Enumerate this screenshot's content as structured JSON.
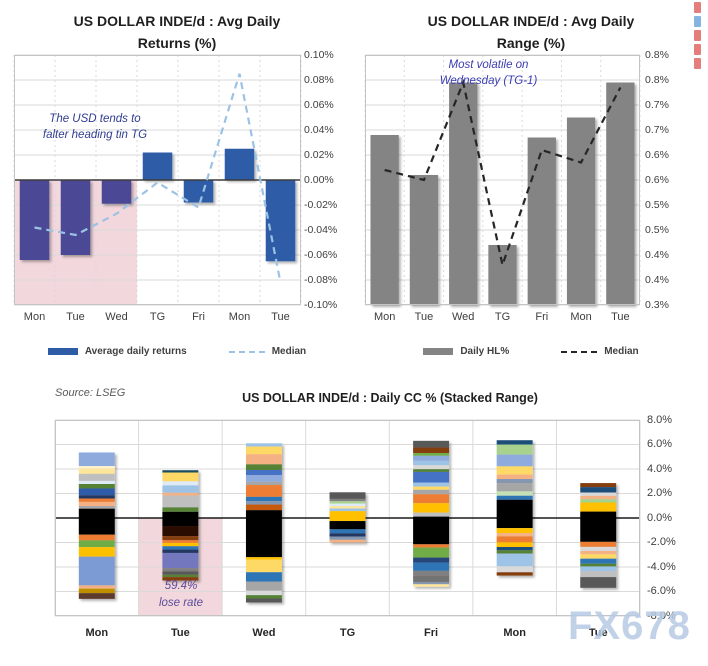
{
  "page": {
    "background": "#ffffff",
    "watermark": "FX678"
  },
  "edge_marks": {
    "colors": [
      "#e06666",
      "#6fa8dc",
      "#e06666",
      "#e06666",
      "#e06666"
    ]
  },
  "chart_data": [
    {
      "id": "avg-daily-returns",
      "type": "bar",
      "title_lines": [
        "US DOLLAR INDE/d : Avg Daily",
        "Returns (%)"
      ],
      "annotation_lines": [
        "The USD tends to",
        "falter heading tin TG"
      ],
      "annotation_color": "#2F3D8F",
      "categories": [
        "Mon",
        "Tue",
        "Wed",
        "TG",
        "Fri",
        "Mon",
        "Tue"
      ],
      "ylim": [
        -0.1,
        0.1
      ],
      "ytick_values": [
        0.1,
        0.08,
        0.06,
        0.04,
        0.02,
        0.0,
        -0.02,
        -0.04,
        -0.06,
        -0.08,
        -0.1
      ],
      "ytick_labels": [
        "0.10%",
        "0.08%",
        "0.06%",
        "0.04%",
        "0.02%",
        "0.00%",
        "-0.02%",
        "-0.04%",
        "-0.06%",
        "-0.08%",
        "-0.10%"
      ],
      "series": [
        {
          "name": "Average daily returns",
          "type": "bar",
          "legend_color": "#2D5BA6",
          "colors": [
            "#4B4A96",
            "#4B4A96",
            "#4B4A96",
            "#2D5BA6",
            "#2D5BA6",
            "#2D5BA6",
            "#2D5BA6"
          ],
          "values": [
            -0.064,
            -0.06,
            -0.019,
            0.022,
            -0.018,
            0.025,
            -0.065
          ]
        },
        {
          "name": "Median",
          "type": "line",
          "color": "#9CC2E5",
          "dashed": true,
          "values": [
            -0.038,
            -0.044,
            -0.027,
            -0.002,
            -0.022,
            0.085,
            -0.082
          ]
        }
      ],
      "highlight": {
        "start_category": 0,
        "end_category": 2,
        "from": 0,
        "to": -0.1,
        "color": "#F2D7DC"
      },
      "legend_position": "bottom",
      "grid": true
    },
    {
      "id": "avg-daily-range",
      "type": "bar",
      "title_lines": [
        "US DOLLAR INDE/d : Avg Daily",
        "Range (%)"
      ],
      "annotation_lines": [
        "Most volatile on",
        "Wednesday (TG-1)"
      ],
      "annotation_color": "#3C3CB4",
      "categories": [
        "Mon",
        "Tue",
        "Wed",
        "TG",
        "Fri",
        "Mon",
        "Tue"
      ],
      "ylim": [
        0.3,
        0.8
      ],
      "ytick_values": [
        0.8,
        0.75,
        0.7,
        0.65,
        0.6,
        0.55,
        0.5,
        0.45,
        0.4,
        0.35,
        0.3
      ],
      "ytick_labels": [
        "0.8%",
        "0.8%",
        "0.7%",
        "0.7%",
        "0.6%",
        "0.6%",
        "0.5%",
        "0.5%",
        "0.4%",
        "0.4%",
        "0.3%"
      ],
      "series": [
        {
          "name": "Daily HL%",
          "type": "bar",
          "legend_color": "#848484",
          "color": "#848484",
          "values": [
            0.64,
            0.56,
            0.745,
            0.42,
            0.635,
            0.675,
            0.745
          ]
        },
        {
          "name": "Median",
          "type": "line",
          "color": "#262626",
          "dashed": true,
          "values": [
            0.57,
            0.55,
            0.745,
            0.38,
            0.61,
            0.585,
            0.735
          ]
        }
      ],
      "legend_position": "bottom",
      "grid": true
    },
    {
      "id": "daily-cc-stacked",
      "type": "stacked-bar",
      "source_note": "Source: LSEG",
      "title": "US DOLLAR INDE/d : Daily CC % (Stacked Range)",
      "categories": [
        "Mon",
        "Tue",
        "Wed",
        "TG",
        "Fri",
        "Mon",
        "Tue"
      ],
      "ylim": [
        -8,
        8
      ],
      "ytick_values": [
        8,
        6,
        4,
        2,
        0,
        -2,
        -4,
        -6,
        -8
      ],
      "ytick_labels": [
        "8.0%",
        "6.0%",
        "4.0%",
        "2.0%",
        "0.0%",
        "-2.0%",
        "-4.0%",
        "-6.0%",
        "-8.0%"
      ],
      "highlight": {
        "category_index": 1,
        "from": 0,
        "to": -8,
        "color": "#F2D7DC",
        "label_lines": [
          "59.4%",
          "lose rate"
        ],
        "label_color": "#5C4B9B"
      },
      "grid": true,
      "bars": [
        {
          "category": "Mon",
          "top": 5.35,
          "bottom": -6.6,
          "segments": [
            {
              "c": "#8FAADC",
              "h": 1.1
            },
            {
              "c": "#FFF2CC",
              "h": 0.22
            },
            {
              "c": "#FFE699",
              "h": 0.41
            },
            {
              "c": "#BFBFBF",
              "h": 0.57
            },
            {
              "c": "#DEEBF7",
              "h": 0.25
            },
            {
              "c": "#548235",
              "h": 0.36
            },
            {
              "c": "#2E5BA8",
              "h": 0.55
            },
            {
              "c": "#203864",
              "h": 0.27
            },
            {
              "c": "#ED7D31",
              "h": 0.27
            },
            {
              "c": "#F4B183",
              "h": 0.33
            },
            {
              "c": "#A6A6A6",
              "h": 0.22
            },
            {
              "c": "#000000",
              "h": 2.1
            },
            {
              "c": "#ED7D31",
              "h": 0.46
            },
            {
              "c": "#70AD47",
              "h": 0.55
            },
            {
              "c": "#FFC000",
              "h": 0.77
            },
            {
              "c": "#7B9BD5",
              "h": 2.32
            },
            {
              "c": "#F4B183",
              "h": 0.27
            },
            {
              "c": "#BF8F00",
              "h": 0.36
            },
            {
              "c": "#5B3A29",
              "h": 0.46
            }
          ]
        },
        {
          "category": "Tue",
          "top": 3.9,
          "bottom": -5.1,
          "segments": [
            {
              "c": "#1F4E5F",
              "h": 0.19
            },
            {
              "c": "#FFD966",
              "h": 0.71
            },
            {
              "c": "#DEEBF7",
              "h": 0.33
            },
            {
              "c": "#9DC3E6",
              "h": 0.6
            },
            {
              "c": "#F4B183",
              "h": 0.22
            },
            {
              "c": "#BFBFBF",
              "h": 0.96
            },
            {
              "c": "#548235",
              "h": 0.36
            },
            {
              "c": "#000000",
              "h": 1.15
            },
            {
              "c": "#2B0B02",
              "h": 0.82
            },
            {
              "c": "#843C0C",
              "h": 0.33
            },
            {
              "c": "#ED7D31",
              "h": 0.22
            },
            {
              "c": "#FFC000",
              "h": 0.27
            },
            {
              "c": "#2E75B6",
              "h": 0.27
            },
            {
              "c": "#203864",
              "h": 0.27
            },
            {
              "c": "#7277BE",
              "h": 1.23
            },
            {
              "c": "#808080",
              "h": 0.27
            },
            {
              "c": "#595959",
              "h": 0.27
            },
            {
              "c": "#548235",
              "h": 0.19
            },
            {
              "c": "#843C0C",
              "h": 0.27
            }
          ]
        },
        {
          "category": "Wed",
          "top": 6.1,
          "bottom": -6.9,
          "segments": [
            {
              "c": "#9DC3E6",
              "h": 0.27
            },
            {
              "c": "#FFD966",
              "h": 0.63
            },
            {
              "c": "#F4B183",
              "h": 0.82
            },
            {
              "c": "#548235",
              "h": 0.46
            },
            {
              "c": "#4472C4",
              "h": 0.41
            },
            {
              "c": "#8FAADC",
              "h": 0.55
            },
            {
              "c": "#A6A6A6",
              "h": 0.27
            },
            {
              "c": "#ED7D31",
              "h": 0.96
            },
            {
              "c": "#2E75B6",
              "h": 0.36
            },
            {
              "c": "#8496B0",
              "h": 0.27
            },
            {
              "c": "#C55A11",
              "h": 0.46
            },
            {
              "c": "#000000",
              "h": 3.83
            },
            {
              "c": "#FFC000",
              "h": 0.19
            },
            {
              "c": "#FFD966",
              "h": 1.04
            },
            {
              "c": "#2E75B6",
              "h": 0.77
            },
            {
              "c": "#A6A6A6",
              "h": 0.74
            },
            {
              "c": "#D9D9D9",
              "h": 0.36
            },
            {
              "c": "#548235",
              "h": 0.27
            },
            {
              "c": "#595959",
              "h": 0.33
            }
          ]
        },
        {
          "category": "TG",
          "top": 2.1,
          "bottom": -2.0,
          "segments": [
            {
              "c": "#595959",
              "h": 0.55
            },
            {
              "c": "#808080",
              "h": 0.19
            },
            {
              "c": "#A9D18E",
              "h": 0.19
            },
            {
              "c": "#DEEBF7",
              "h": 0.22
            },
            {
              "c": "#FFE699",
              "h": 0.19
            },
            {
              "c": "#9DC3E6",
              "h": 0.22
            },
            {
              "c": "#FFC000",
              "h": 0.82
            },
            {
              "c": "#000000",
              "h": 0.68
            },
            {
              "c": "#2E75B6",
              "h": 0.33
            },
            {
              "c": "#203864",
              "h": 0.27
            },
            {
              "c": "#8496B0",
              "h": 0.27
            },
            {
              "c": "#F4B183",
              "h": 0.22
            }
          ]
        },
        {
          "category": "Fri",
          "top": 6.3,
          "bottom": -5.6,
          "segments": [
            {
              "c": "#595959",
              "h": 0.55
            },
            {
              "c": "#843C0C",
              "h": 0.46
            },
            {
              "c": "#70AD47",
              "h": 0.22
            },
            {
              "c": "#8FAADC",
              "h": 0.41
            },
            {
              "c": "#9DC3E6",
              "h": 0.36
            },
            {
              "c": "#D9D9D9",
              "h": 0.33
            },
            {
              "c": "#548235",
              "h": 0.22
            },
            {
              "c": "#4472C4",
              "h": 0.87
            },
            {
              "c": "#9DC3E6",
              "h": 0.33
            },
            {
              "c": "#FFD966",
              "h": 0.27
            },
            {
              "c": "#A6A6A6",
              "h": 0.36
            },
            {
              "c": "#ED7D31",
              "h": 0.74
            },
            {
              "c": "#FFC000",
              "h": 0.77
            },
            {
              "c": "#BFBFBF",
              "h": 0.33
            },
            {
              "c": "#000000",
              "h": 2.27
            },
            {
              "c": "#ED7D31",
              "h": 0.27
            },
            {
              "c": "#70AD47",
              "h": 0.82
            },
            {
              "c": "#264478",
              "h": 0.41
            },
            {
              "c": "#2E75B6",
              "h": 0.68
            },
            {
              "c": "#808080",
              "h": 0.36
            },
            {
              "c": "#737373",
              "h": 0.55
            },
            {
              "c": "#8496B0",
              "h": 0.19
            },
            {
              "c": "#FFE699",
              "h": 0.19
            }
          ]
        },
        {
          "category": "Mon",
          "top": 6.35,
          "bottom": -4.7,
          "segments": [
            {
              "c": "#1F4E79",
              "h": 0.36
            },
            {
              "c": "#A9D18E",
              "h": 0.82
            },
            {
              "c": "#8FAADC",
              "h": 0.96
            },
            {
              "c": "#FFD966",
              "h": 0.68
            },
            {
              "c": "#F4B183",
              "h": 0.36
            },
            {
              "c": "#8496B0",
              "h": 0.33
            },
            {
              "c": "#A6A6A6",
              "h": 0.68
            },
            {
              "c": "#C5E0B4",
              "h": 0.36
            },
            {
              "c": "#2E75B6",
              "h": 0.33
            },
            {
              "c": "#000000",
              "h": 2.32
            },
            {
              "c": "#FFC000",
              "h": 0.41
            },
            {
              "c": "#F4B183",
              "h": 0.27
            },
            {
              "c": "#ED7D31",
              "h": 0.49
            },
            {
              "c": "#FFC000",
              "h": 0.38
            },
            {
              "c": "#1F4E79",
              "h": 0.27
            },
            {
              "c": "#548235",
              "h": 0.27
            },
            {
              "c": "#9DC3E6",
              "h": 1.04
            },
            {
              "c": "#D9D9D9",
              "h": 0.49
            },
            {
              "c": "#843C0C",
              "h": 0.27
            }
          ]
        },
        {
          "category": "Tue",
          "top": 2.85,
          "bottom": -5.7,
          "segments": [
            {
              "c": "#843C0C",
              "h": 0.33
            },
            {
              "c": "#1F4E79",
              "h": 0.44
            },
            {
              "c": "#D9D9D9",
              "h": 0.27
            },
            {
              "c": "#F4B183",
              "h": 0.27
            },
            {
              "c": "#A9D18E",
              "h": 0.27
            },
            {
              "c": "#FFC000",
              "h": 0.74
            },
            {
              "c": "#000000",
              "h": 2.46
            },
            {
              "c": "#ED7D31",
              "h": 0.41
            },
            {
              "c": "#D9D9D9",
              "h": 0.33
            },
            {
              "c": "#F4B183",
              "h": 0.27
            },
            {
              "c": "#FFD966",
              "h": 0.36
            },
            {
              "c": "#2E75B6",
              "h": 0.41
            },
            {
              "c": "#548235",
              "h": 0.22
            },
            {
              "c": "#9DC3E6",
              "h": 0.38
            },
            {
              "c": "#BFBFBF",
              "h": 0.49
            },
            {
              "c": "#595959",
              "h": 0.87
            }
          ]
        }
      ]
    }
  ]
}
